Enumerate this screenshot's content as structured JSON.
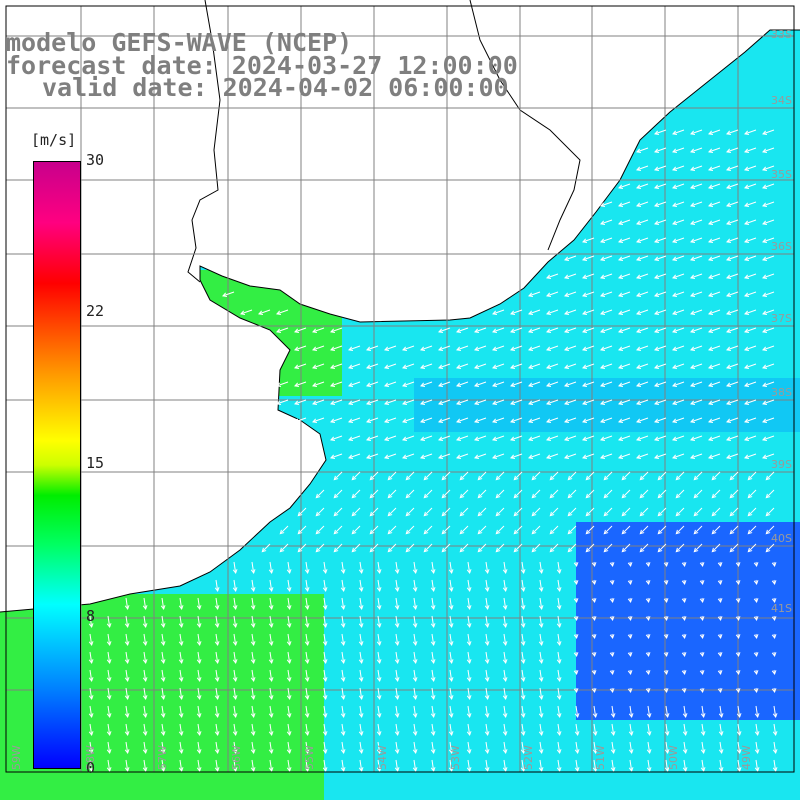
{
  "header": {
    "line1": "modelo GEFS-WAVE (NCEP)",
    "line2": "forecast date: 2024-03-27 12:00:00",
    "line3": "valid date: 2024-04-02 06:00:00"
  },
  "colorbar": {
    "unit": "[m/s]",
    "ticks": [
      "30",
      "22",
      "15",
      "8",
      "0"
    ],
    "range": [
      0,
      30
    ],
    "colors": [
      "#0000ff",
      "#0080ff",
      "#00ffff",
      "#00ff60",
      "#00ee00",
      "#ffff00",
      "#ff9900",
      "#ff0000",
      "#c8008c"
    ]
  },
  "map": {
    "latitude_labels": [
      "33S",
      "34S",
      "35S",
      "36S",
      "37S",
      "38S",
      "39S",
      "40S",
      "41S"
    ],
    "longitude_labels": [
      "59W",
      "58W",
      "57W",
      "56W",
      "55W",
      "54W",
      "53W",
      "52W",
      "51W",
      "50W",
      "49W"
    ],
    "land_color": "#ffffff",
    "coastline_color": "#000000",
    "grid_color": "#808080",
    "arrow_color": "#ffffff"
  }
}
